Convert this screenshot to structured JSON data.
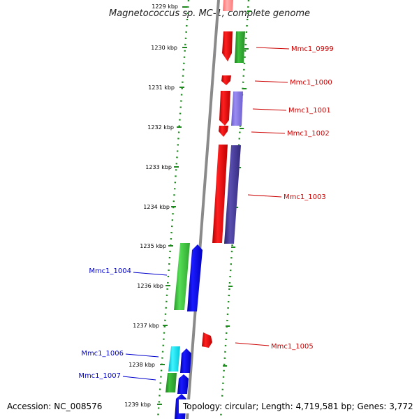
{
  "title": "Magnetococcus sp. MC-1, complete genome",
  "accession": "Accession: NC_008576",
  "topology": "Topology: circular; Length: 4,719,581 bp; Genes: 3,772",
  "ruler": [
    "1229 kbp",
    "1230 kbp",
    "1231 kbp",
    "1232 kbp",
    "1233 kbp",
    "1234 kbp",
    "1235 kbp",
    "1236 kbp",
    "1237 kbp",
    "1238 kbp",
    "1239 kbp"
  ],
  "gene_labels": {
    "forward": [
      "Mmc1_0999",
      "Mmc1_1000",
      "Mmc1_1001",
      "Mmc1_1002",
      "Mmc1_1003",
      "Mmc1_1005"
    ],
    "reverse": [
      "Mmc1_1004",
      "Mmc1_1006",
      "Mmc1_1007"
    ]
  },
  "colors": {
    "forward_label": "#cc0000",
    "reverse_label": "#0000cc",
    "cds_forward": "#ff0000",
    "cds_reverse": "#0000ff",
    "tick_dots": "#1a8a1a",
    "backbone": "#8a8a8a"
  }
}
